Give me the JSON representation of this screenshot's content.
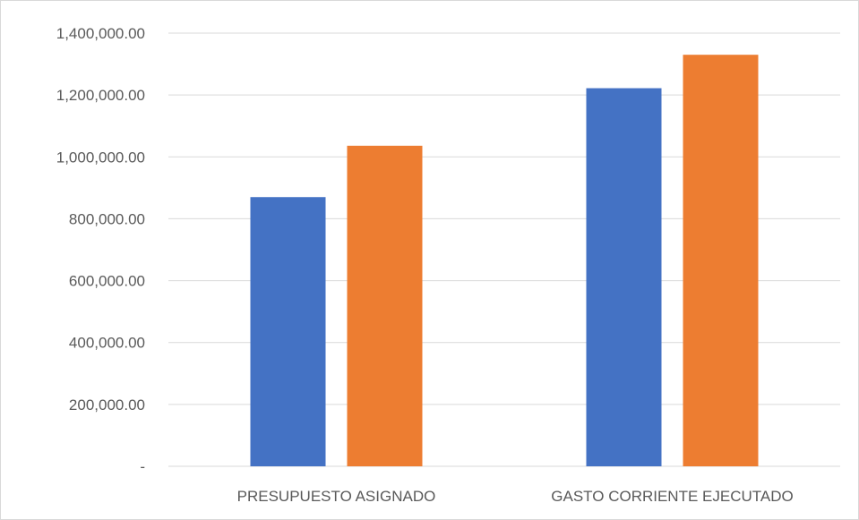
{
  "chart_data": {
    "type": "bar",
    "title": "",
    "xlabel": "",
    "ylabel": "",
    "categories": [
      "PRESUPUESTO ASIGNADO",
      "GASTO CORRIENTE EJECUTADO"
    ],
    "series": [
      {
        "values": [
          870000,
          1222000
        ],
        "color": "#4472c4"
      },
      {
        "values": [
          1036000,
          1330000
        ],
        "color": "#ed7d31"
      }
    ],
    "ylim": [
      0,
      1400000
    ],
    "yticks": [
      0,
      200000,
      400000,
      600000,
      800000,
      1000000,
      1200000,
      1400000
    ],
    "ytick_labels": [
      "-",
      "200,000.00",
      "400,000.00",
      "600,000.00",
      "800,000.00",
      "1,000,000.00",
      "1,200,000.00",
      "1,400,000.00"
    ],
    "grid": true,
    "legend": "none"
  }
}
